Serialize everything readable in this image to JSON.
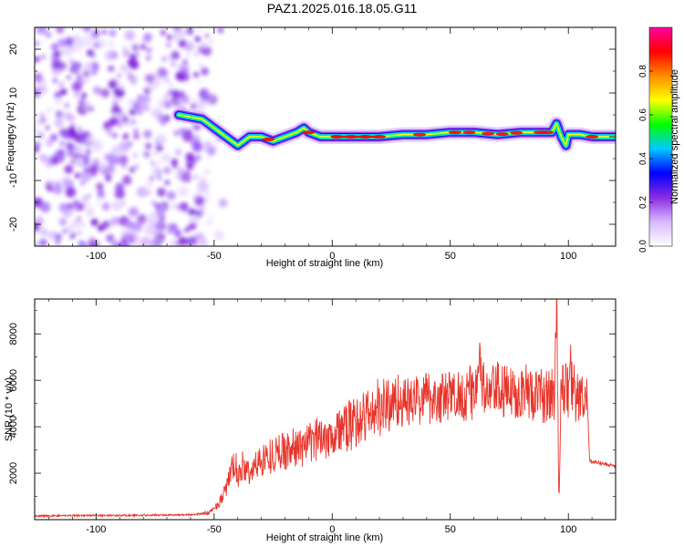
{
  "title": "PAZ1.2025.016.18.05.G11",
  "chart_data": [
    {
      "type": "heatmap",
      "xlabel": "Height of straight line (km)",
      "ylabel": "Frequency (Hz)",
      "xlim": [
        -126,
        120
      ],
      "ylim": [
        -25,
        25
      ],
      "x_ticks": [
        -100,
        -50,
        0,
        50,
        100
      ],
      "y_ticks": [
        -20,
        -10,
        0,
        10,
        20
      ],
      "colorbar": {
        "label": "Normalized spectral amplitude",
        "ticks": [
          "0.0",
          "0.2",
          "0.4",
          "0.6",
          "0.8"
        ],
        "range": [
          0,
          1
        ],
        "colors": [
          "#ffffff",
          "#d8b8ff",
          "#8a2be2",
          "#0000ff",
          "#00c8ff",
          "#00ff00",
          "#ffff00",
          "#ff8c00",
          "#ff0000",
          "#ff00a0"
        ]
      },
      "ridge": {
        "x": [
          -65,
          -55,
          -50,
          -45,
          -40,
          -35,
          -30,
          -25,
          -20,
          -15,
          -12,
          -10,
          -5,
          0,
          10,
          20,
          30,
          40,
          50,
          60,
          70,
          80,
          90,
          93,
          95,
          97,
          99,
          100,
          105,
          110,
          120
        ],
        "y": [
          5,
          4,
          2,
          0,
          -2,
          0,
          0,
          -1,
          0,
          1,
          2,
          1,
          0,
          0,
          0,
          0,
          0.5,
          0.5,
          1,
          1,
          0.5,
          1,
          1,
          1,
          3,
          0,
          -2,
          0.5,
          0.5,
          0,
          0
        ]
      }
    },
    {
      "type": "line",
      "xlabel": "Height of straight line (km)",
      "ylabel": "SNR (10 * v/v)",
      "xlim": [
        -126,
        120
      ],
      "ylim": [
        0,
        9500
      ],
      "x_ticks": [
        -100,
        -50,
        0,
        50,
        100
      ],
      "y_ticks": [
        2000,
        4000,
        6000,
        8000
      ],
      "series": [
        {
          "color": "#e8342a",
          "x": [
            -126,
            -110,
            -90,
            -70,
            -58,
            -52,
            -48,
            -45,
            -43,
            -41,
            -40,
            -38,
            -35,
            -30,
            -25,
            -20,
            -15,
            -10,
            -5,
            0,
            5,
            10,
            15,
            20,
            25,
            28,
            30,
            35,
            40,
            45,
            50,
            55,
            60,
            62,
            65,
            70,
            75,
            80,
            85,
            90,
            94,
            95,
            96,
            97,
            98,
            100,
            101,
            103,
            105,
            107,
            108,
            109,
            110,
            115,
            120
          ],
          "y": [
            150,
            180,
            180,
            200,
            220,
            300,
            700,
            1300,
            2000,
            2500,
            1700,
            2300,
            2000,
            2600,
            2800,
            3000,
            3100,
            3200,
            3600,
            3700,
            3900,
            4200,
            4500,
            4800,
            5000,
            5200,
            5000,
            5100,
            5300,
            5200,
            5300,
            5400,
            5500,
            6500,
            5300,
            5600,
            5400,
            5600,
            5400,
            5300,
            5400,
            9400,
            700,
            6000,
            5800,
            5500,
            6300,
            5300,
            5200,
            5000,
            5100,
            2500,
            2500,
            2400,
            2300
          ]
        }
      ]
    }
  ]
}
